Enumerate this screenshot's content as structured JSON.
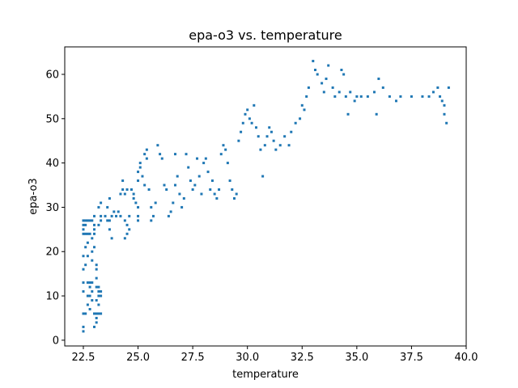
{
  "chart_data": {
    "type": "scatter",
    "title": "epa-o3 vs. temperature",
    "xlabel": "temperature",
    "ylabel": "epa-o3",
    "xlim": [
      21.65,
      40.0
    ],
    "ylim": [
      -1.3,
      66.2
    ],
    "xticks": [
      22.5,
      25.0,
      27.5,
      30.0,
      32.5,
      35.0,
      37.5,
      40.0
    ],
    "xtick_labels": [
      "22.5",
      "25.0",
      "27.5",
      "30.0",
      "32.5",
      "35.0",
      "37.5",
      "40.0"
    ],
    "yticks": [
      0,
      10,
      20,
      30,
      40,
      50,
      60
    ],
    "ytick_labels": [
      "0",
      "10",
      "20",
      "30",
      "40",
      "50",
      "60"
    ],
    "grid": false,
    "marker_color": "#1f77b4",
    "series": [
      {
        "points": [
          [
            22.5,
            2
          ],
          [
            22.5,
            3
          ],
          [
            22.5,
            6
          ],
          [
            22.6,
            6
          ],
          [
            22.5,
            11
          ],
          [
            22.5,
            13
          ],
          [
            22.5,
            16
          ],
          [
            22.5,
            19
          ],
          [
            22.5,
            24
          ],
          [
            22.6,
            24
          ],
          [
            22.5,
            25
          ],
          [
            22.5,
            26
          ],
          [
            22.6,
            26
          ],
          [
            22.5,
            27
          ],
          [
            22.6,
            27
          ],
          [
            22.7,
            27
          ],
          [
            22.8,
            27
          ],
          [
            22.9,
            27
          ],
          [
            22.7,
            24
          ],
          [
            22.8,
            24
          ],
          [
            22.7,
            22
          ],
          [
            22.6,
            21
          ],
          [
            22.7,
            19
          ],
          [
            22.6,
            17
          ],
          [
            22.7,
            13
          ],
          [
            22.8,
            13
          ],
          [
            22.9,
            13
          ],
          [
            22.8,
            12
          ],
          [
            22.9,
            11
          ],
          [
            22.7,
            10
          ],
          [
            22.8,
            10
          ],
          [
            22.7,
            8
          ],
          [
            22.8,
            7
          ],
          [
            22.9,
            9
          ],
          [
            22.9,
            18
          ],
          [
            22.9,
            20
          ],
          [
            22.9,
            23
          ],
          [
            23.0,
            26
          ],
          [
            23.0,
            28
          ],
          [
            23.1,
            12
          ],
          [
            23.2,
            12
          ],
          [
            23.0,
            6
          ],
          [
            23.1,
            6
          ],
          [
            23.2,
            6
          ],
          [
            23.3,
            6
          ],
          [
            23.0,
            3
          ],
          [
            23.1,
            4
          ],
          [
            23.1,
            5
          ],
          [
            23.2,
            8
          ],
          [
            23.1,
            9
          ],
          [
            23.2,
            10
          ],
          [
            23.3,
            10
          ],
          [
            23.2,
            11
          ],
          [
            23.3,
            11
          ],
          [
            23.1,
            14
          ],
          [
            23.1,
            16
          ],
          [
            23.1,
            17
          ],
          [
            23.0,
            21
          ],
          [
            23.0,
            24
          ],
          [
            23.0,
            25
          ],
          [
            23.2,
            26
          ],
          [
            23.3,
            27
          ],
          [
            23.3,
            28
          ],
          [
            23.2,
            30
          ],
          [
            23.3,
            31
          ],
          [
            23.5,
            28
          ],
          [
            23.6,
            27
          ],
          [
            23.7,
            27
          ],
          [
            23.8,
            28
          ],
          [
            23.7,
            25
          ],
          [
            23.8,
            23
          ],
          [
            23.6,
            30
          ],
          [
            23.7,
            32
          ],
          [
            23.9,
            29
          ],
          [
            24.0,
            28
          ],
          [
            24.1,
            29
          ],
          [
            24.2,
            33
          ],
          [
            24.3,
            34
          ],
          [
            24.4,
            33
          ],
          [
            24.3,
            36
          ],
          [
            24.2,
            28
          ],
          [
            24.4,
            27
          ],
          [
            24.5,
            26
          ],
          [
            24.4,
            23
          ],
          [
            24.5,
            24
          ],
          [
            24.6,
            25
          ],
          [
            24.6,
            28
          ],
          [
            24.5,
            34
          ],
          [
            24.7,
            34
          ],
          [
            24.8,
            33
          ],
          [
            24.8,
            32
          ],
          [
            24.9,
            31
          ],
          [
            25.0,
            27
          ],
          [
            25.0,
            28
          ],
          [
            25.0,
            30
          ],
          [
            25.0,
            36
          ],
          [
            25.0,
            38
          ],
          [
            25.1,
            40
          ],
          [
            25.1,
            39
          ],
          [
            25.2,
            37
          ],
          [
            25.3,
            35
          ],
          [
            25.3,
            42
          ],
          [
            25.4,
            43
          ],
          [
            25.4,
            41
          ],
          [
            25.5,
            34
          ],
          [
            25.6,
            30
          ],
          [
            25.6,
            27
          ],
          [
            25.7,
            28
          ],
          [
            25.8,
            31
          ],
          [
            25.9,
            44
          ],
          [
            26.0,
            42
          ],
          [
            26.1,
            41
          ],
          [
            26.2,
            35
          ],
          [
            26.3,
            34
          ],
          [
            26.4,
            28
          ],
          [
            26.5,
            29
          ],
          [
            26.6,
            31
          ],
          [
            26.7,
            35
          ],
          [
            26.7,
            42
          ],
          [
            26.8,
            37
          ],
          [
            26.9,
            33
          ],
          [
            27.0,
            30
          ],
          [
            27.1,
            32
          ],
          [
            27.2,
            42
          ],
          [
            27.3,
            39
          ],
          [
            27.4,
            36
          ],
          [
            27.5,
            34
          ],
          [
            27.6,
            35
          ],
          [
            27.7,
            41
          ],
          [
            27.8,
            37
          ],
          [
            27.9,
            33
          ],
          [
            28.0,
            40
          ],
          [
            28.1,
            41
          ],
          [
            28.2,
            38
          ],
          [
            28.3,
            34
          ],
          [
            28.4,
            36
          ],
          [
            28.5,
            33
          ],
          [
            28.6,
            32
          ],
          [
            28.7,
            34
          ],
          [
            28.8,
            42
          ],
          [
            28.9,
            44
          ],
          [
            29.0,
            43
          ],
          [
            29.1,
            40
          ],
          [
            29.2,
            36
          ],
          [
            29.3,
            34
          ],
          [
            29.4,
            32
          ],
          [
            29.5,
            33
          ],
          [
            29.6,
            45
          ],
          [
            29.7,
            47
          ],
          [
            29.8,
            49
          ],
          [
            29.9,
            51
          ],
          [
            30.0,
            52
          ],
          [
            30.1,
            50
          ],
          [
            30.2,
            49
          ],
          [
            30.3,
            53
          ],
          [
            30.4,
            48
          ],
          [
            30.5,
            46
          ],
          [
            30.6,
            43
          ],
          [
            30.7,
            37
          ],
          [
            30.8,
            44
          ],
          [
            30.9,
            46
          ],
          [
            31.0,
            48
          ],
          [
            31.1,
            47
          ],
          [
            31.2,
            45
          ],
          [
            31.3,
            43
          ],
          [
            31.5,
            44
          ],
          [
            31.7,
            46
          ],
          [
            31.9,
            44
          ],
          [
            32.0,
            47
          ],
          [
            32.2,
            49
          ],
          [
            32.4,
            50
          ],
          [
            32.5,
            53
          ],
          [
            32.6,
            52
          ],
          [
            32.7,
            55
          ],
          [
            32.8,
            57
          ],
          [
            33.0,
            63
          ],
          [
            33.1,
            61
          ],
          [
            33.2,
            60
          ],
          [
            33.4,
            58
          ],
          [
            33.5,
            56
          ],
          [
            33.6,
            59
          ],
          [
            33.7,
            62
          ],
          [
            33.9,
            57
          ],
          [
            34.0,
            55
          ],
          [
            34.2,
            56
          ],
          [
            34.3,
            61
          ],
          [
            34.4,
            60
          ],
          [
            34.5,
            55
          ],
          [
            34.6,
            51
          ],
          [
            34.7,
            56
          ],
          [
            34.9,
            54
          ],
          [
            35.0,
            55
          ],
          [
            35.2,
            55
          ],
          [
            35.5,
            55
          ],
          [
            35.8,
            56
          ],
          [
            35.9,
            51
          ],
          [
            36.0,
            59
          ],
          [
            36.2,
            57
          ],
          [
            36.5,
            55
          ],
          [
            36.8,
            54
          ],
          [
            37.0,
            55
          ],
          [
            37.5,
            55
          ],
          [
            38.0,
            55
          ],
          [
            38.3,
            55
          ],
          [
            38.5,
            56
          ],
          [
            38.7,
            57
          ],
          [
            38.8,
            55
          ],
          [
            38.9,
            54
          ],
          [
            39.0,
            53
          ],
          [
            39.0,
            51
          ],
          [
            39.1,
            49
          ],
          [
            39.2,
            57
          ]
        ]
      }
    ]
  }
}
